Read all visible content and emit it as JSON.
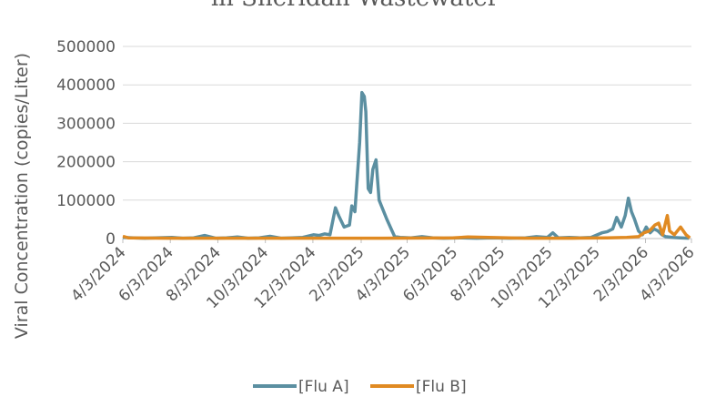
{
  "chart_data": {
    "type": "line",
    "title": "in Sheridan Wastewater",
    "y_label": "Viral Concentration (copies/Liter)",
    "xlim": [
      "4/3/2024",
      "4/3/2026"
    ],
    "xticks": [
      "4/3/2024",
      "6/3/2024",
      "8/3/2024",
      "10/3/2024",
      "12/3/2024",
      "2/3/2025",
      "4/3/2025",
      "6/3/2025",
      "8/3/2025",
      "10/3/2025",
      "12/3/2025",
      "2/3/2026",
      "4/3/2026"
    ],
    "ylim": [
      0,
      500000
    ],
    "yticks": [
      0,
      100000,
      200000,
      300000,
      400000,
      500000
    ],
    "grid": true,
    "legend": "bottom",
    "series": [
      {
        "name": "[Flu A]",
        "color": "#5b8fa1",
        "x": [
          "4/3/2024",
          "4/17/2024",
          "5/1/2024",
          "5/15/2024",
          "6/5/2024",
          "6/19/2024",
          "7/3/2024",
          "7/17/2024",
          "7/31/2024",
          "8/14/2024",
          "8/28/2024",
          "9/11/2024",
          "9/25/2024",
          "10/9/2024",
          "10/23/2024",
          "11/6/2024",
          "11/20/2024",
          "12/4/2024",
          "12/11/2024",
          "12/18/2024",
          "12/25/2024",
          "1/1/2025",
          "1/5/2025",
          "1/12/2025",
          "1/19/2025",
          "1/22/2025",
          "1/26/2025",
          "1/29/2025",
          "2/1/2025",
          "2/4/2025",
          "2/7/2025",
          "2/9/2025",
          "2/12/2025",
          "2/15/2025",
          "2/18/2025",
          "2/22/2025",
          "2/26/2025",
          "3/8/2025",
          "3/18/2025",
          "3/25/2025",
          "4/8/2025",
          "4/22/2025",
          "5/6/2025",
          "5/20/2025",
          "6/10/2025",
          "7/1/2025",
          "7/22/2025",
          "8/12/2025",
          "9/2/2025",
          "9/16/2025",
          "9/30/2025",
          "10/7/2025",
          "10/14/2025",
          "10/28/2025",
          "11/11/2025",
          "11/25/2025",
          "12/9/2025",
          "12/16/2025",
          "12/23/2025",
          "12/28/2025",
          "1/3/2026",
          "1/8/2026",
          "1/12/2026",
          "1/16/2026",
          "1/20/2026",
          "1/25/2026",
          "1/30/2026",
          "2/4/2026",
          "2/9/2026",
          "2/14/2026",
          "2/19/2026",
          "2/24/2026",
          "3/1/2026",
          "3/10/2026",
          "3/20/2026",
          "3/31/2026"
        ],
        "values": [
          3000,
          2000,
          1000,
          2000,
          3000,
          1000,
          2000,
          8000,
          1000,
          2000,
          4000,
          1000,
          2000,
          6000,
          1000,
          2000,
          3000,
          10000,
          8000,
          12000,
          10000,
          80000,
          60000,
          30000,
          35000,
          85000,
          70000,
          160000,
          250000,
          380000,
          370000,
          330000,
          130000,
          120000,
          180000,
          205000,
          100000,
          50000,
          5000,
          3000,
          2000,
          5000,
          2000,
          1000,
          2000,
          1000,
          2000,
          1000,
          2000,
          5000,
          3000,
          15000,
          2000,
          3000,
          2000,
          3000,
          15000,
          18000,
          25000,
          55000,
          30000,
          60000,
          105000,
          70000,
          50000,
          20000,
          10000,
          30000,
          15000,
          25000,
          20000,
          10000,
          5000,
          3000,
          2000,
          1000
        ]
      },
      {
        "name": "[Flu B]",
        "color": "#e08a22",
        "x": [
          "4/3/2024",
          "4/10/2024",
          "6/1/2024",
          "9/1/2024",
          "12/1/2024",
          "3/1/2025",
          "6/1/2025",
          "6/20/2025",
          "9/1/2025",
          "11/1/2025",
          "12/15/2025",
          "1/10/2026",
          "1/25/2026",
          "2/1/2026",
          "2/8/2026",
          "2/15/2026",
          "2/20/2026",
          "2/25/2026",
          "3/3/2026",
          "3/6/2026",
          "3/12/2026",
          "3/20/2026",
          "3/27/2026",
          "4/1/2026"
        ],
        "values": [
          6000,
          2000,
          1000,
          1000,
          1000,
          1000,
          2000,
          4000,
          1000,
          1000,
          2000,
          3000,
          5000,
          15000,
          20000,
          35000,
          40000,
          10000,
          60000,
          20000,
          10000,
          30000,
          10000,
          2000
        ]
      }
    ]
  }
}
